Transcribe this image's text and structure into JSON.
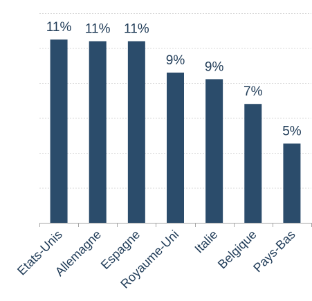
{
  "chart_data": {
    "type": "bar",
    "categories": [
      "Etats-Unis",
      "Allemagne",
      "Espagne",
      "Royaume-Uni",
      "Italie",
      "Belgique",
      "Pays-Bas"
    ],
    "values": [
      11.1,
      11.0,
      11.0,
      9.1,
      8.7,
      7.2,
      4.8
    ],
    "data_labels": [
      "11%",
      "11%",
      "11%",
      "9%",
      "9%",
      "7%",
      "5%"
    ],
    "title": "",
    "xlabel": "",
    "ylabel": "",
    "ylim": [
      0,
      12.7
    ],
    "grid": true,
    "gridline_count": 6,
    "bar_color": "#2b4c6b",
    "text_color": "#1f3b57",
    "gridline_color": "#d9d9d9",
    "axis_color": "#a6a6a6"
  }
}
